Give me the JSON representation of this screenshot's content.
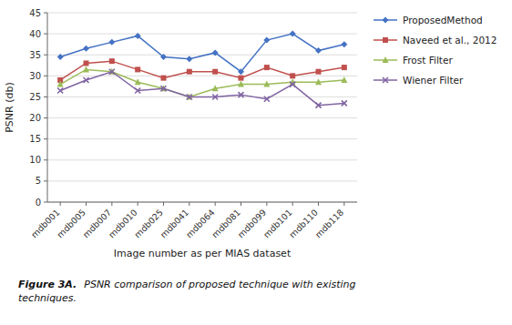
{
  "chart_data": {
    "type": "line",
    "categories": [
      "mdb001",
      "mdb005",
      "mdb007",
      "mdb010",
      "mdb025",
      "mdb041",
      "mdb064",
      "mdb081",
      "mdb099",
      "mdb101",
      "mdb110",
      "mdb118"
    ],
    "series": [
      {
        "name": "ProposedMethod",
        "color": "#4472C4",
        "marker": "diamond",
        "values": [
          34.5,
          36.5,
          38.0,
          39.5,
          34.5,
          34.0,
          35.5,
          31.0,
          38.5,
          40.0,
          36.0,
          37.5
        ]
      },
      {
        "name": "Naveed et al., 2012",
        "color": "#C0504D",
        "marker": "square",
        "values": [
          29.0,
          33.0,
          33.5,
          31.5,
          29.5,
          31.0,
          31.0,
          29.5,
          32.0,
          30.0,
          31.0,
          32.0
        ]
      },
      {
        "name": "Frost Filter",
        "color": "#9BBB59",
        "marker": "triangle",
        "values": [
          28.0,
          31.5,
          31.0,
          28.5,
          27.0,
          25.0,
          27.0,
          28.0,
          28.0,
          28.5,
          28.5,
          29.0
        ]
      },
      {
        "name": "Wiener Filter",
        "color": "#8064A2",
        "marker": "x",
        "values": [
          26.5,
          29.0,
          31.0,
          26.5,
          27.0,
          25.0,
          25.0,
          25.5,
          24.5,
          28.0,
          23.0,
          23.5
        ]
      }
    ],
    "x_label": "Image number as per MIAS dataset",
    "y_label": "PSNR (db)",
    "ylim": [
      0,
      45
    ],
    "yticks": [
      0,
      5,
      10,
      15,
      20,
      25,
      30,
      35,
      40,
      45
    ],
    "grid": true,
    "legend": "right",
    "caption": [
      "Figure 3A.",
      "PSNR comparison of proposed technique with existing\ntechniques."
    ]
  }
}
